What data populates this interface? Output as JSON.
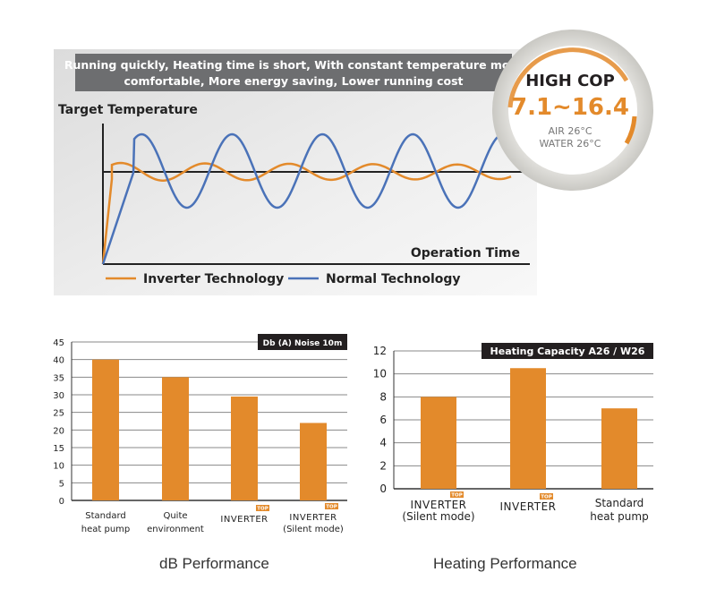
{
  "banner": {
    "line1": "Running quickly, Heating time is short, With constant temperature more",
    "line2": "comfortable, More energy saving, Lower running cost"
  },
  "cop_badge": {
    "title": "HIGH COP",
    "value": "7.1~16.4",
    "air": "AIR 26°C",
    "water": "WATER 26°C"
  },
  "colors": {
    "orange": "#e38a2b",
    "blue": "#4a72b8",
    "dark": "#231f20",
    "banner": "#6d6e70"
  },
  "chart_data": [
    {
      "type": "line",
      "title": "",
      "ylabel": "Target Temperature",
      "xlabel": "Operation Time",
      "legend": [
        "Inverter Technology",
        "Normal Technology"
      ],
      "series": [
        {
          "name": "Inverter Technology",
          "description": "fast rise, small oscillation around target"
        },
        {
          "name": "Normal Technology",
          "description": "slow rise, large oscillation around target"
        }
      ]
    },
    {
      "type": "bar",
      "title": "Db (A) Noise 10m",
      "caption": "dB Performance",
      "categories": [
        [
          "Standard",
          "heat pump"
        ],
        [
          "Quite",
          "environment"
        ],
        [
          "INVERTER",
          ""
        ],
        [
          "INVERTER",
          "(Silent mode)"
        ]
      ],
      "values": [
        40,
        35,
        29.5,
        22
      ],
      "ylim": [
        0,
        45
      ],
      "yticks": [
        0,
        5,
        10,
        15,
        20,
        25,
        30,
        35,
        40,
        45
      ]
    },
    {
      "type": "bar",
      "title": "Heating Capacity A26 / W26",
      "caption": "Heating Performance",
      "categories": [
        [
          "INVERTER",
          "(Silent mode)"
        ],
        [
          "INVERTER",
          ""
        ],
        [
          "Standard",
          "heat pump"
        ]
      ],
      "values": [
        8,
        10.5,
        7
      ],
      "ylim": [
        0,
        12
      ],
      "yticks": [
        0,
        2,
        4,
        6,
        8,
        10,
        12
      ]
    }
  ],
  "top_tag": "TOP"
}
